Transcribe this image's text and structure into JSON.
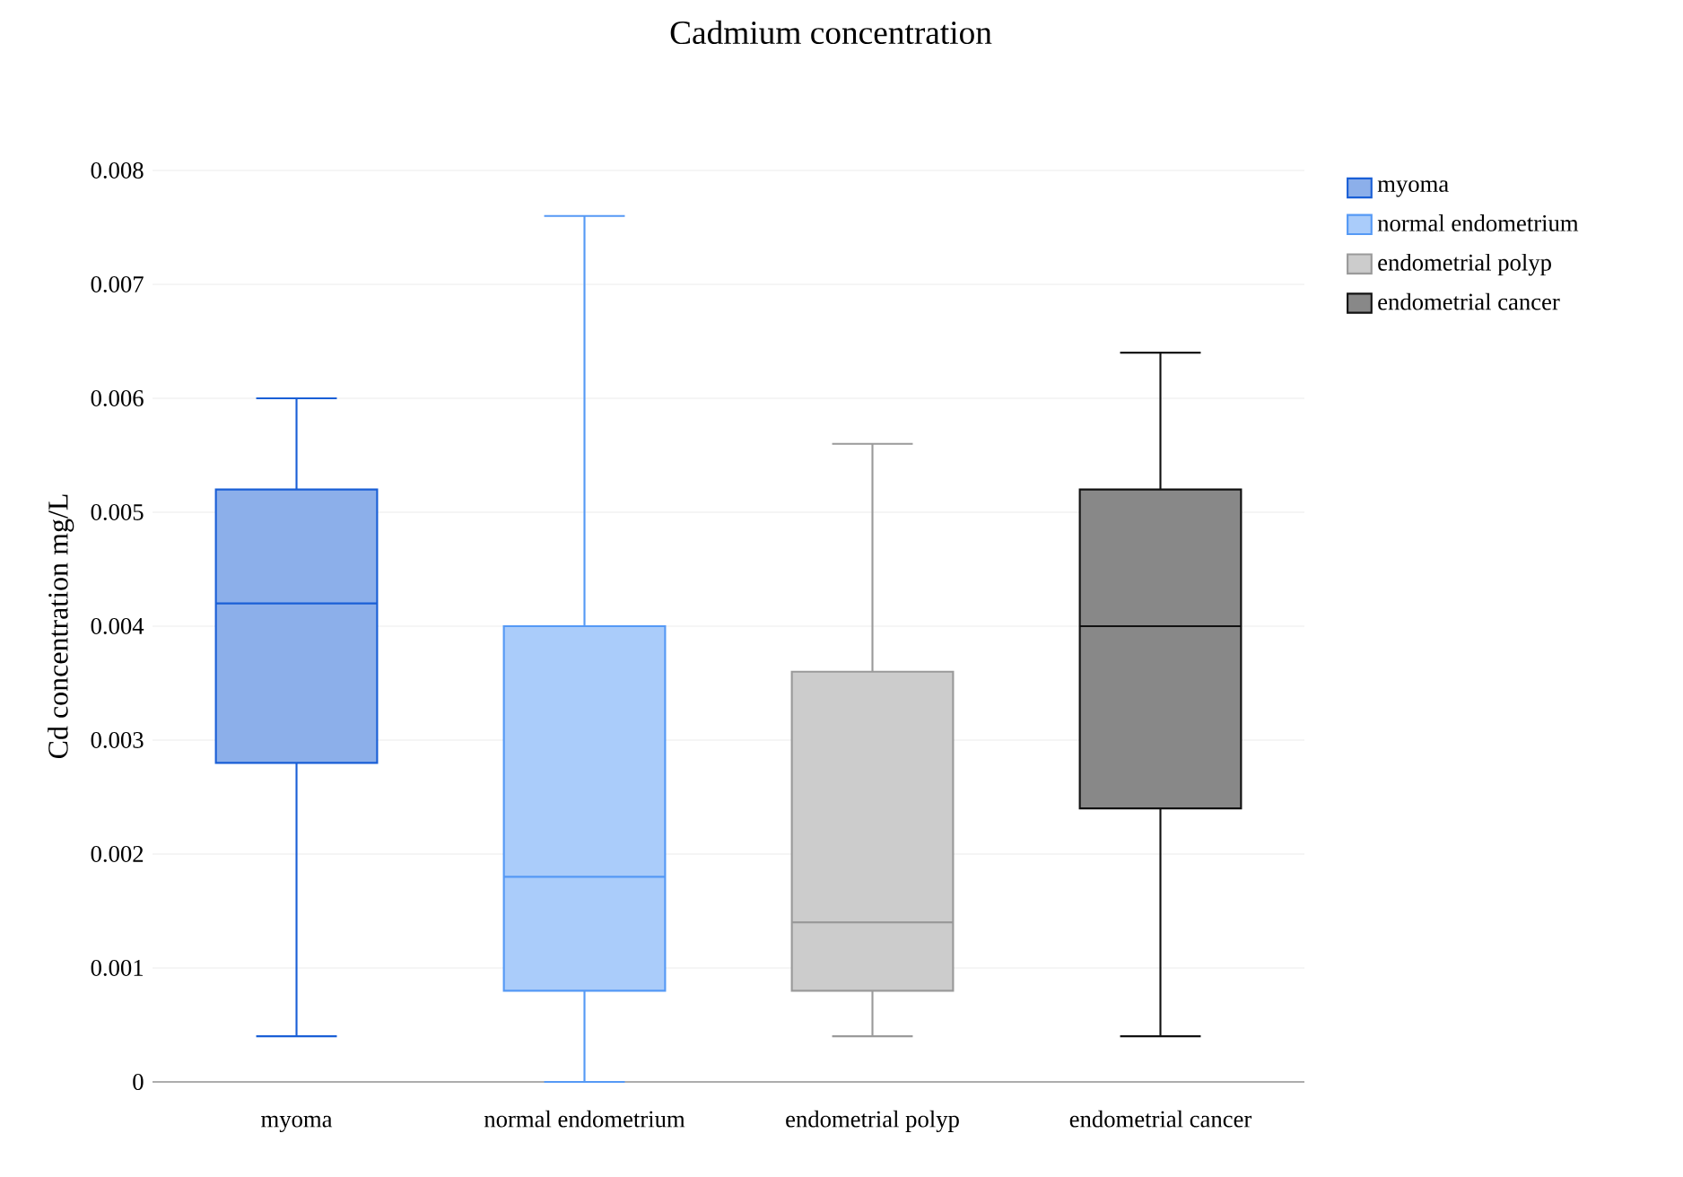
{
  "chart_data": {
    "type": "box",
    "title": "Cadmium concentration",
    "ylabel": "Cd concentration mg/L",
    "categories": [
      "myoma",
      "normal endometrium",
      "endometrial polyp",
      "endometrial cancer"
    ],
    "series": [
      {
        "name": "myoma",
        "color": "#1a5fd6",
        "boxes": [
          {
            "low": 0.0004,
            "q1": 0.0028,
            "median": 0.0042,
            "q3": 0.0052,
            "high": 0.006
          },
          null,
          null,
          null
        ]
      },
      {
        "name": "normal endometrium",
        "color": "#5599f5",
        "boxes": [
          null,
          {
            "low": 0,
            "q1": 0.0008,
            "median": 0.0018,
            "q3": 0.004,
            "high": 0.0076
          },
          null,
          null
        ]
      },
      {
        "name": "endometrial polyp",
        "color": "#9a9a9a",
        "boxes": [
          null,
          null,
          {
            "low": 0.0004,
            "q1": 0.0008,
            "median": 0.0014,
            "q3": 0.0036,
            "high": 0.0056
          },
          null
        ]
      },
      {
        "name": "endometrial cancer",
        "color": "#111111",
        "boxes": [
          null,
          null,
          null,
          {
            "low": 0.0004,
            "q1": 0.0024,
            "median": 0.004,
            "q3": 0.0052,
            "high": 0.0064
          }
        ]
      }
    ],
    "ylim": [
      0,
      0.008
    ],
    "yticks": [
      0,
      0.001,
      0.002,
      0.003,
      0.004,
      0.005,
      0.006,
      0.007,
      0.008
    ],
    "grid": "y",
    "legend": "top right"
  }
}
